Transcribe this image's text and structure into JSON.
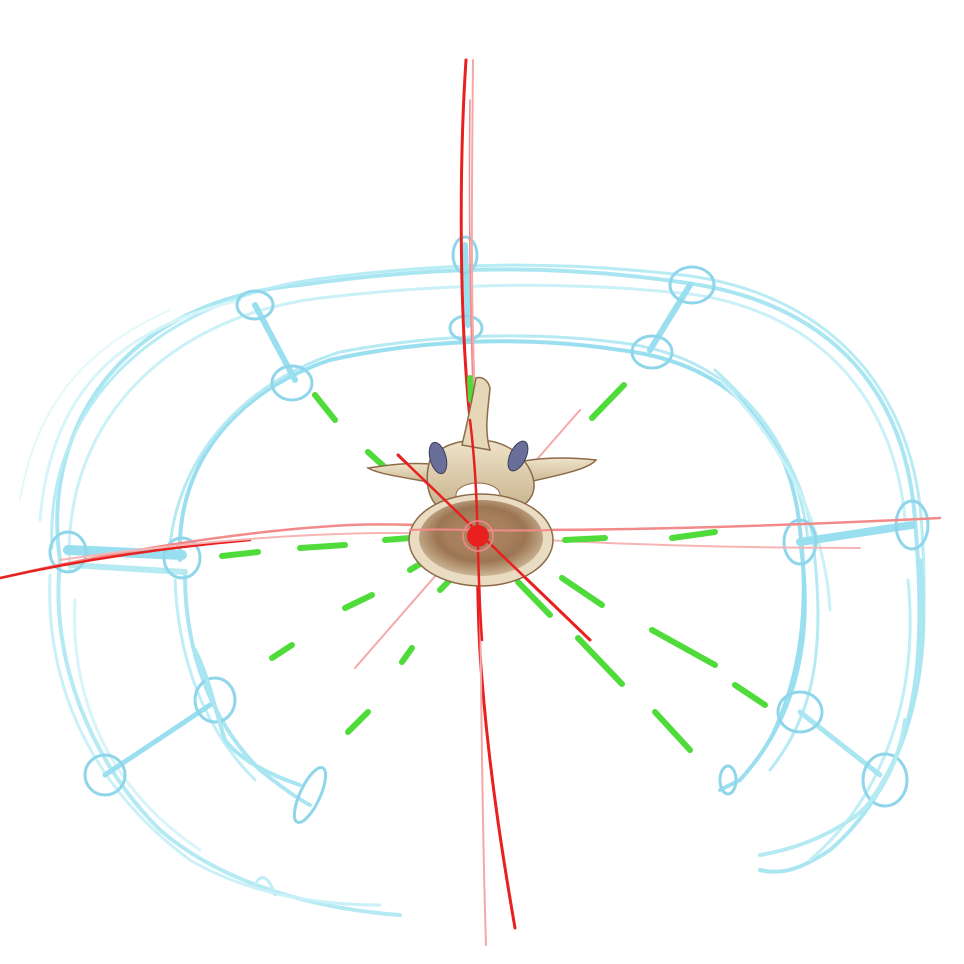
{
  "canvas": {
    "background": "#ffffff"
  },
  "colors": {
    "outline": "#a9e6f2",
    "outline_dark": "#8fd6ea",
    "outline_light": "#c9f1f7",
    "guide_lines": "#e8201f",
    "guide_lines_faint": "#f28a8a",
    "rays": "#4fdc3a",
    "center_point": "#e8201f",
    "vertebra_bone": "#d9c5a4",
    "vertebra_shadow": "#8c6b4a",
    "vertebra_disc": "#c9a987",
    "facet_blue": "#6a6f9a"
  },
  "elements": {
    "vertebra": "vertebra-illustration",
    "center": "center-point",
    "rays": "green-dashed-rays",
    "frame": "blue-sketch-frame",
    "axes": "red-guide-lines"
  }
}
